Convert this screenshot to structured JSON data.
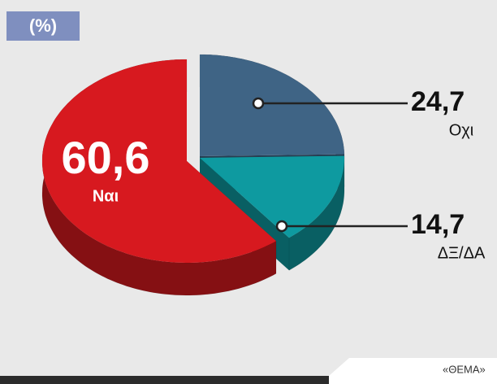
{
  "chart_data": {
    "type": "pie",
    "title": "(%)",
    "categories": [
      "Ναι",
      "Οχι",
      "ΔΞ/ΔΑ"
    ],
    "values": [
      60.6,
      24.7,
      14.7
    ],
    "value_labels": [
      "60,6",
      "24,7",
      "14,7"
    ],
    "colors": [
      "#d7191f",
      "#3f6485",
      "#0e9aa0"
    ],
    "source": "«ΘΕΜΑ»"
  }
}
